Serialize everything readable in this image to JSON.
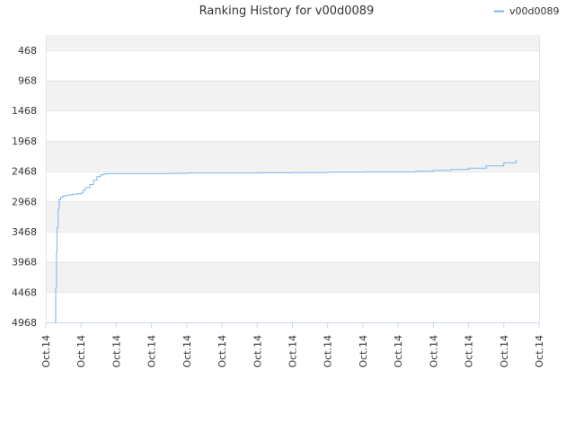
{
  "chart_data": {
    "type": "line",
    "title": "Ranking History for v00d0089",
    "legend": {
      "position": "top-right",
      "entries": [
        "v00d0089"
      ]
    },
    "y_axis": {
      "reversed": true,
      "range": [
        218,
        4968
      ],
      "ticks": [
        468,
        968,
        1468,
        1968,
        2468,
        2968,
        3468,
        3968,
        4468,
        4968
      ],
      "tick_labels": [
        "468",
        "968",
        "1468",
        "1968",
        "2468",
        "2968",
        "3468",
        "3968",
        "4468",
        "4968"
      ],
      "band_colors": [
        "#f2f2f2",
        "#ffffff"
      ]
    },
    "x_axis": {
      "range": [
        0,
        14
      ],
      "tick_labels": [
        "Oct.14",
        "Oct.14",
        "Oct.14",
        "Oct.14",
        "Oct.14",
        "Oct.14",
        "Oct.14",
        "Oct.14",
        "Oct.14",
        "Oct.14",
        "Oct.14",
        "Oct.14",
        "Oct.14",
        "Oct.14",
        "Oct.14"
      ],
      "label_rotation": -90
    },
    "grid": true,
    "series": [
      {
        "name": "v00d0089",
        "color": "#7cb5ec",
        "x": [
          0.25,
          0.27,
          0.28,
          0.3,
          0.32,
          0.35,
          0.38,
          0.42,
          0.48,
          0.55,
          0.65,
          0.75,
          0.85,
          0.92,
          1.0,
          1.05,
          1.12,
          1.25,
          1.35,
          1.45,
          1.55,
          1.65,
          1.75,
          1.85,
          2.0,
          2.2,
          2.5,
          3.0,
          3.5,
          4.0,
          5.0,
          6.0,
          7.0,
          8.0,
          9.0,
          10.0,
          10.5,
          11.0,
          11.5,
          12.0,
          12.5,
          13.0,
          13.35
        ],
        "y": [
          4968,
          4968,
          4400,
          3800,
          3400,
          3100,
          2940,
          2900,
          2880,
          2870,
          2860,
          2850,
          2850,
          2840,
          2830,
          2790,
          2740,
          2690,
          2620,
          2560,
          2530,
          2515,
          2510,
          2510,
          2510,
          2510,
          2510,
          2510,
          2505,
          2500,
          2500,
          2495,
          2490,
          2485,
          2480,
          2480,
          2470,
          2455,
          2440,
          2420,
          2380,
          2330,
          2280
        ]
      }
    ]
  }
}
